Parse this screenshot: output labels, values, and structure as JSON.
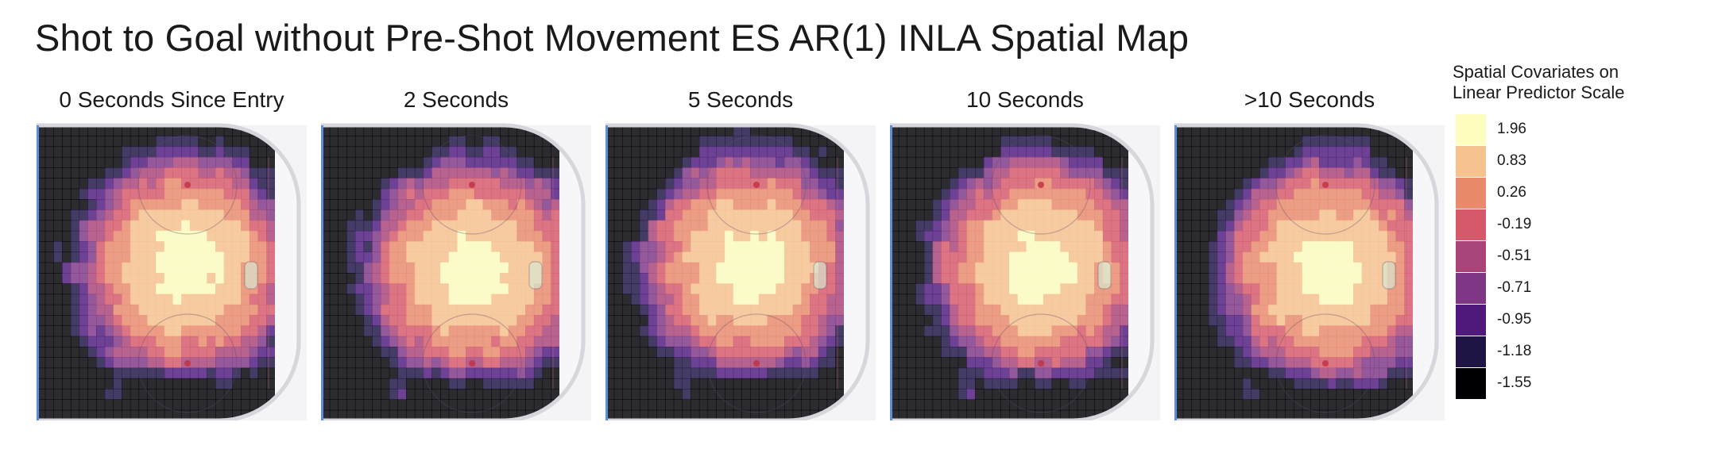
{
  "title": "Shot to Goal without Pre-Shot Movement ES AR(1) INLA Spatial Map",
  "chart_data": {
    "type": "heatmap",
    "facets": [
      {
        "label": "0 Seconds Since Entry",
        "variant": 0
      },
      {
        "label": "2 Seconds",
        "variant": 1
      },
      {
        "label": "5 Seconds",
        "variant": 2
      },
      {
        "label": "10 Seconds",
        "variant": 3
      },
      {
        "label": ">10 Seconds",
        "variant": 4
      }
    ],
    "legend": {
      "title_line1": "Spatial Covariates on",
      "title_line2": "Linear Predictor Scale",
      "position": "right",
      "levels": [
        {
          "label": "1.96",
          "color": "#fcfdbf"
        },
        {
          "label": "0.83",
          "color": "#f6c28d"
        },
        {
          "label": "0.26",
          "color": "#e98a6c"
        },
        {
          "label": "-0.19",
          "color": "#d6596a"
        },
        {
          "label": "-0.51",
          "color": "#a84478"
        },
        {
          "label": "-0.71",
          "color": "#7f3785"
        },
        {
          "label": "-0.95",
          "color": "#4f1a7c"
        },
        {
          "label": "-1.18",
          "color": "#1f1444"
        },
        {
          "label": "-1.55",
          "color": "#000004"
        }
      ]
    },
    "surface": "half-rink offensive zone",
    "grid": false
  }
}
